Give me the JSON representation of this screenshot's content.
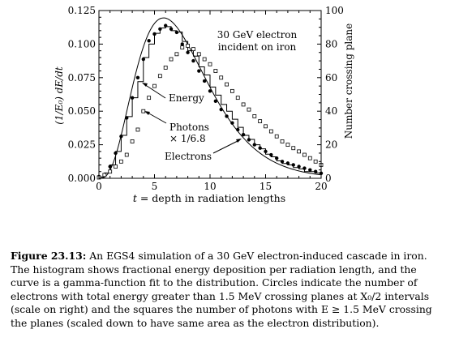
{
  "chart_data": {
    "type": "line",
    "xlabel_var": "t",
    "xlabel_rest": " = depth in radiation lengths",
    "ylabel_left": "(1/E₀) dE/dt",
    "ylabel_right": "Number crossing plane",
    "xlim": [
      0,
      20
    ],
    "ylim_left": [
      0,
      0.125
    ],
    "ylim_right": [
      0,
      100
    ],
    "x_ticks": [
      0,
      5,
      10,
      15,
      20
    ],
    "x_tick_labels": [
      "0",
      "5",
      "10",
      "15",
      "20"
    ],
    "y_left_ticks": [
      0,
      0.025,
      0.05,
      0.075,
      0.1,
      0.125
    ],
    "y_left_tick_labels": [
      "0.000",
      "0.025",
      "0.050",
      "0.075",
      "0.100",
      "0.125"
    ],
    "y_right_ticks": [
      0,
      20,
      40,
      60,
      80,
      100
    ],
    "y_right_tick_labels": [
      "0",
      "20",
      "40",
      "60",
      "80",
      "100"
    ],
    "annotation_title": [
      "30 GeV electron",
      "incident on iron"
    ],
    "labels": {
      "energy": "Energy",
      "photons_1": "Photons",
      "photons_2": "× 1/6.8",
      "electrons": "Electrons"
    },
    "series": [
      {
        "name": "Energy",
        "kind": "histogram",
        "axis": "left",
        "bin_width": 0.5,
        "x": [
          0,
          0.5,
          1,
          1.5,
          2,
          2.5,
          3,
          3.5,
          4,
          4.5,
          5,
          5.5,
          6,
          6.5,
          7,
          7.5,
          8,
          8.5,
          9,
          9.5,
          10,
          10.5,
          11,
          11.5,
          12,
          12.5,
          13,
          13.5,
          14,
          14.5,
          15,
          15.5,
          16,
          16.5,
          17,
          17.5,
          18,
          18.5,
          19,
          19.5
        ],
        "values": [
          0.001,
          0.004,
          0.01,
          0.02,
          0.032,
          0.046,
          0.06,
          0.072,
          0.09,
          0.1,
          0.108,
          0.112,
          0.113,
          0.11,
          0.109,
          0.102,
          0.095,
          0.091,
          0.083,
          0.077,
          0.068,
          0.062,
          0.055,
          0.05,
          0.044,
          0.038,
          0.032,
          0.029,
          0.025,
          0.022,
          0.018,
          0.016,
          0.013,
          0.011,
          0.01,
          0.008,
          0.007,
          0.005,
          0.005,
          0.004
        ]
      },
      {
        "name": "gamma-function fit",
        "kind": "curve",
        "axis": "left",
        "a": 4.2,
        "b": 0.55,
        "norm": 1.0
      },
      {
        "name": "Electrons",
        "kind": "points",
        "marker": "circle",
        "axis": "right",
        "x": [
          0,
          0.5,
          1,
          1.5,
          2,
          2.5,
          3,
          3.5,
          4,
          4.5,
          5,
          5.5,
          6,
          6.5,
          7,
          7.5,
          8,
          8.5,
          9,
          9.5,
          10,
          10.5,
          11,
          11.5,
          12,
          12.5,
          13,
          13.5,
          14,
          14.5,
          15,
          15.5,
          16,
          16.5,
          17,
          17.5,
          18,
          18.5,
          19,
          19.5,
          20
        ],
        "values": [
          1,
          2,
          7,
          15,
          25,
          36,
          48,
          60,
          71,
          82,
          86,
          89,
          91,
          89,
          87,
          80,
          75,
          70,
          64,
          58,
          52,
          46,
          41,
          37,
          33,
          29,
          26,
          23,
          20,
          18,
          16,
          14,
          12,
          10,
          9,
          8,
          7,
          6,
          5,
          4,
          3
        ]
      },
      {
        "name": "Photons × 1/6.8",
        "kind": "points",
        "marker": "square",
        "axis": "right",
        "x": [
          0,
          0.5,
          1,
          1.5,
          2,
          2.5,
          3,
          3.5,
          4,
          4.5,
          5,
          5.5,
          6,
          6.5,
          7,
          7.5,
          8,
          8.5,
          9,
          9.5,
          10,
          10.5,
          11,
          11.5,
          12,
          12.5,
          13,
          13.5,
          14,
          14.5,
          15,
          15.5,
          16,
          16.5,
          17,
          17.5,
          18,
          18.5,
          19,
          19.5,
          20
        ],
        "values": [
          0.5,
          2,
          4,
          7,
          10,
          14,
          22,
          29,
          40,
          48,
          55,
          61,
          66,
          71,
          74,
          78,
          79,
          77,
          74,
          71,
          68,
          64,
          60,
          56,
          52,
          48,
          44,
          41,
          37,
          34,
          31,
          28,
          25,
          22,
          20,
          18,
          16,
          14,
          12,
          10,
          8
        ]
      }
    ]
  },
  "caption": {
    "label": "Figure 23.13:",
    "line1_rest": " An EGS4 simulation of a 30 GeV electron-induced cascade in iron.",
    "line2": "The histogram shows fractional energy deposition per radiation length, and the",
    "line3": "curve is a gamma-function fit to the distribution. Circles indicate the number of",
    "line4": "electrons with total energy greater than 1.5 MeV crossing planes at X₀/2 intervals",
    "line5": "(scale on right) and the squares the number of photons with E ≥ 1.5 MeV crossing",
    "line6": "the planes (scaled down to have same area as the electron distribution)."
  }
}
